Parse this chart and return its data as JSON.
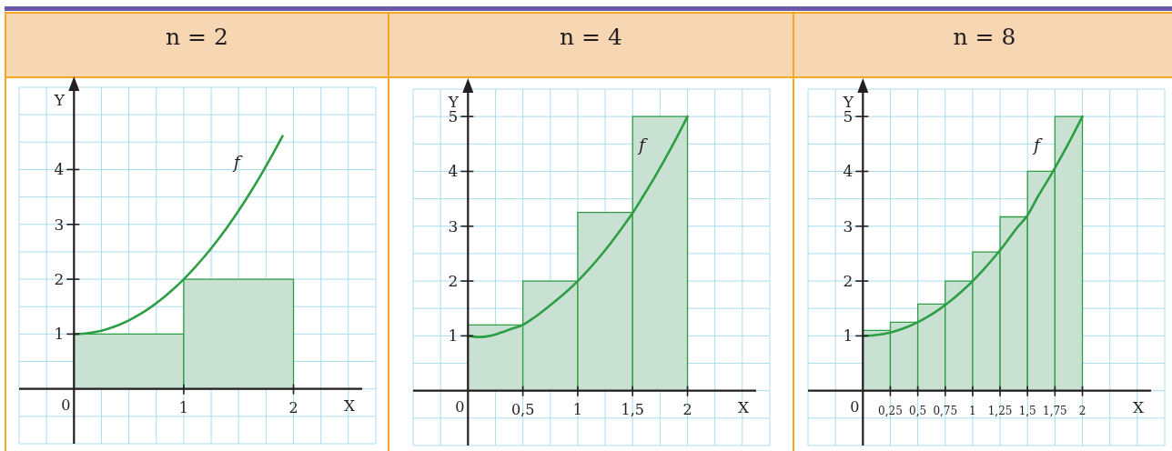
{
  "chart_data": [
    {
      "type": "histogram",
      "title": "n = 2",
      "xlabel": "X",
      "ylabel": "Y",
      "bins": [
        0,
        1,
        2
      ],
      "series": [
        {
          "color": "#c8e1d2",
          "values": [
            1,
            2
          ]
        },
        {
          "type": "line",
          "name": "f",
          "color": "#2e9e44",
          "x": [
            0,
            0.1,
            0.2,
            0.3,
            0.4,
            0.5,
            0.6,
            0.7,
            0.8,
            0.9,
            1,
            1.1,
            1.2,
            1.3,
            1.4,
            1.5,
            1.6,
            1.7,
            1.8,
            1.9
          ],
          "values": [
            1,
            1.01,
            1.04,
            1.09,
            1.16,
            1.25,
            1.36,
            1.49,
            1.64,
            1.81,
            2,
            2.21,
            2.44,
            2.69,
            2.96,
            3.25,
            3.56,
            3.89,
            4.24,
            4.61
          ]
        }
      ],
      "xlim": [
        -0.5,
        2.75
      ],
      "ylim": [
        -1,
        5.5
      ],
      "xticks": [
        {
          "value": -0.5,
          "label": null
        },
        {
          "value": -0.25,
          "label": null
        },
        0,
        {
          "value": 0.25,
          "label": null
        },
        {
          "value": 0.5,
          "label": null
        },
        {
          "value": 0.75,
          "label": null
        },
        1,
        {
          "value": 1.25,
          "label": null
        },
        {
          "value": 1.5,
          "label": null
        },
        {
          "value": 1.75,
          "label": null
        },
        2,
        {
          "value": 2.25,
          "label": null
        },
        {
          "value": 2.5,
          "label": null
        },
        {
          "value": 2.75,
          "label": null
        }
      ],
      "yticks": [
        {
          "value": -1,
          "label": null
        },
        {
          "value": -0.5,
          "label": null
        },
        {
          "value": 0,
          "label": null
        },
        {
          "value": 0.5,
          "label": null
        },
        1,
        {
          "value": 1.5,
          "label": null
        },
        2,
        {
          "value": 2.5,
          "label": null
        },
        3,
        {
          "value": 3.5,
          "label": null
        },
        4,
        {
          "value": 4.5,
          "label": null
        },
        {
          "value": 5,
          "label": null
        },
        {
          "value": 5.5,
          "label": null
        }
      ],
      "grid": true
    },
    {
      "type": "histogram",
      "title": "n = 4",
      "xlabel": "X",
      "ylabel": "Y",
      "bins": [
        0,
        0.5,
        1,
        1.5,
        2
      ],
      "series": [
        {
          "color": "#c8e1d2",
          "values": [
            1.2,
            2,
            3.25,
            5
          ]
        },
        {
          "type": "line",
          "name": "f",
          "color": "#2e9e44",
          "x": [
            0,
            0.1,
            0.2,
            0.3,
            0.4,
            0.5,
            0.6,
            0.7,
            0.8,
            0.9,
            1,
            1.1,
            1.2,
            1.3,
            1.4,
            1.5,
            1.6,
            1.7,
            1.8,
            1.9,
            2
          ],
          "values": [
            1,
            0.98,
            1,
            1.06,
            1.13,
            1.2,
            1.33,
            1.48,
            1.64,
            1.81,
            2,
            2.21,
            2.44,
            2.69,
            2.96,
            3.24,
            3.56,
            3.89,
            4.24,
            4.61,
            5
          ]
        }
      ],
      "xlim": [
        -0.5,
        2.75
      ],
      "ylim": [
        -1,
        5.5
      ],
      "xticks": [
        {
          "value": -0.5,
          "label": null
        },
        {
          "value": -0.25,
          "label": null
        },
        0,
        {
          "value": 0.25,
          "label": null
        },
        {
          "value": 0.5,
          "label": "0,5"
        },
        {
          "value": 0.75,
          "label": null
        },
        1,
        {
          "value": 1.25,
          "label": null
        },
        {
          "value": 1.5,
          "label": "1,5"
        },
        {
          "value": 1.75,
          "label": null
        },
        2,
        {
          "value": 2.25,
          "label": null
        },
        {
          "value": 2.5,
          "label": null
        },
        {
          "value": 2.75,
          "label": null
        }
      ],
      "yticks": [
        {
          "value": -1,
          "label": null
        },
        {
          "value": -0.5,
          "label": null
        },
        {
          "value": 0,
          "label": null
        },
        {
          "value": 0.5,
          "label": null
        },
        1,
        {
          "value": 1.5,
          "label": null
        },
        2,
        {
          "value": 2.5,
          "label": null
        },
        3,
        {
          "value": 3.5,
          "label": null
        },
        4,
        {
          "value": 4.5,
          "label": null
        },
        5,
        {
          "value": 5.5,
          "label": null
        }
      ],
      "grid": true
    },
    {
      "type": "histogram",
      "title": "n = 8",
      "xlabel": "X",
      "ylabel": "Y",
      "bins": [
        0,
        0.25,
        0.5,
        0.75,
        1,
        1.25,
        1.5,
        1.75,
        2
      ],
      "series": [
        {
          "color": "#c8e1d2",
          "values": [
            1.1,
            1.25,
            1.58,
            2,
            2.53,
            3.17,
            4,
            5
          ]
        },
        {
          "type": "line",
          "name": "f",
          "color": "#2e9e44",
          "x": [
            0,
            0.1,
            0.2,
            0.3,
            0.4,
            0.5,
            0.6,
            0.7,
            0.8,
            0.9,
            1,
            1.1,
            1.2,
            1.3,
            1.4,
            1.5,
            1.6,
            1.7,
            1.8,
            1.9,
            2
          ],
          "values": [
            1,
            1.01,
            1.04,
            1.09,
            1.16,
            1.25,
            1.36,
            1.49,
            1.64,
            1.81,
            2,
            2.21,
            2.44,
            2.69,
            2.96,
            3.2,
            3.56,
            3.89,
            4.24,
            4.61,
            5
          ]
        }
      ],
      "xlim": [
        -0.5,
        2.75
      ],
      "ylim": [
        -1,
        5.5
      ],
      "xticks": [
        {
          "value": -0.5,
          "label": null
        },
        {
          "value": -0.25,
          "label": null
        },
        0,
        {
          "value": 0.25,
          "label": "0,25"
        },
        {
          "value": 0.5,
          "label": "0,5"
        },
        {
          "value": 0.75,
          "label": "0,75"
        },
        1,
        {
          "value": 1.25,
          "label": "1,25"
        },
        {
          "value": 1.5,
          "label": "1,5"
        },
        {
          "value": 1.75,
          "label": "1,75"
        },
        2,
        {
          "value": 2.25,
          "label": null
        },
        {
          "value": 2.5,
          "label": null
        },
        {
          "value": 2.75,
          "label": null
        }
      ],
      "yticks": [
        {
          "value": -1,
          "label": null
        },
        {
          "value": -0.5,
          "label": null
        },
        {
          "value": 0,
          "label": null
        },
        {
          "value": 0.5,
          "label": null
        },
        1,
        {
          "value": 1.5,
          "label": null
        },
        2,
        {
          "value": 2.5,
          "label": null
        },
        3,
        {
          "value": 3.5,
          "label": null
        },
        4,
        {
          "value": 4.5,
          "label": null
        },
        5,
        {
          "value": 5.5,
          "label": null
        }
      ],
      "grid": true
    }
  ]
}
